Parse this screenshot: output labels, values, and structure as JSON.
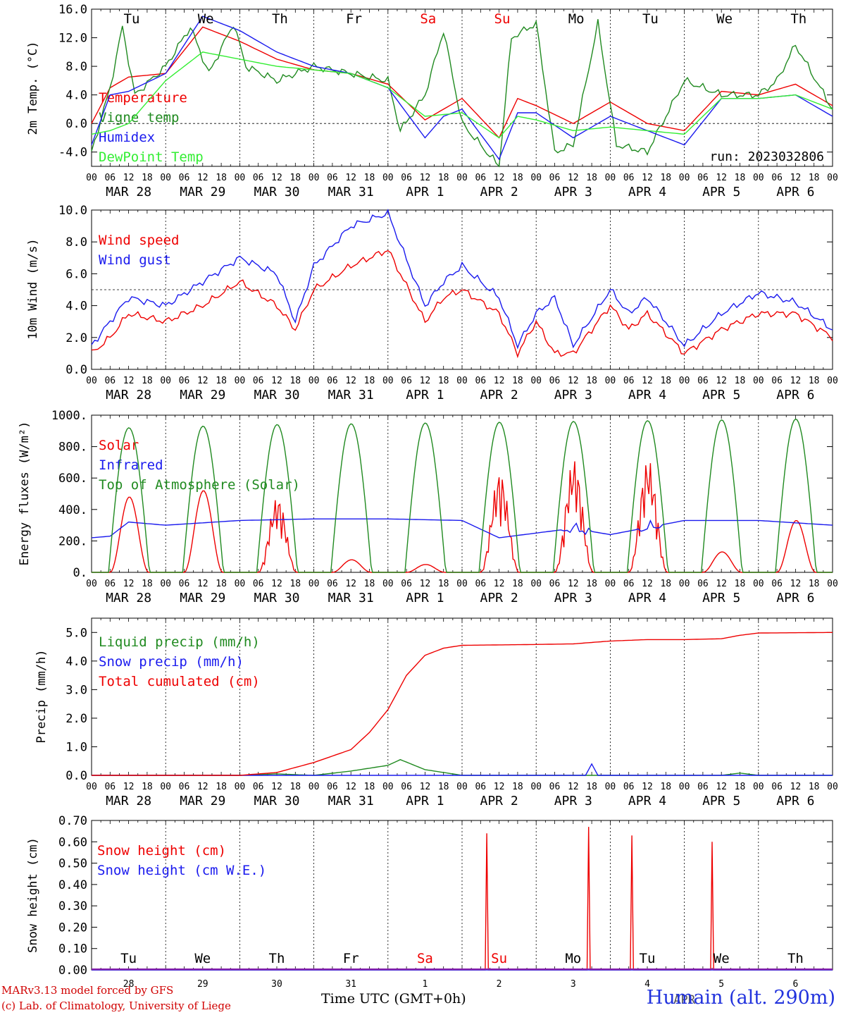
{
  "run_label": "run: 2023032806",
  "footer": {
    "line1": "MARv3.13 model forced by GFS",
    "line2": "(c) Lab. of Climatology, University of Liege",
    "xtitle": "Time UTC (GMT+0h)",
    "station": "Humain (alt. 290m)",
    "month_overlay": "APR"
  },
  "colors": {
    "red": "#ee0000",
    "darkgreen": "#208a20",
    "blue": "#1a1aee",
    "lightgreen": "#33ee33",
    "weekend": "#ee0000"
  },
  "days": [
    {
      "weekday": "Tu",
      "date": "MAR 28",
      "daynum": "28",
      "weekend": false
    },
    {
      "weekday": "We",
      "date": "MAR 29",
      "daynum": "29",
      "weekend": false
    },
    {
      "weekday": "Th",
      "date": "MAR 30",
      "daynum": "30",
      "weekend": false
    },
    {
      "weekday": "Fr",
      "date": "MAR 31",
      "daynum": "31",
      "weekend": false
    },
    {
      "weekday": "Sa",
      "date": "APR  1",
      "daynum": "1",
      "weekend": true
    },
    {
      "weekday": "Su",
      "date": "APR  2",
      "daynum": "2",
      "weekend": true
    },
    {
      "weekday": "Mo",
      "date": "APR  3",
      "daynum": "3",
      "weekend": false
    },
    {
      "weekday": "Tu",
      "date": "APR  4",
      "daynum": "4",
      "weekend": false
    },
    {
      "weekday": "We",
      "date": "APR  5",
      "daynum": "5",
      "weekend": false
    },
    {
      "weekday": "Th",
      "date": "APR  6",
      "daynum": "6",
      "weekend": false
    }
  ],
  "hour_ticks": [
    "00",
    "06",
    "12",
    "18"
  ],
  "chart_data": [
    {
      "type": "line",
      "ylabel": "2m Temp. (°C)",
      "ylim": [
        -6,
        16
      ],
      "yticks": [
        "-4.0",
        "0.0",
        "4.0",
        "8.0",
        "12.0",
        "16.0"
      ],
      "ytick_values": [
        -4,
        0,
        4,
        8,
        12,
        16
      ],
      "reference_line": 0,
      "x_unit": "hours since MAR 28 00 UTC",
      "series": [
        {
          "name": "Temperature",
          "color": "red",
          "x": [
            0,
            6,
            12,
            24,
            36,
            48,
            60,
            72,
            84,
            96,
            108,
            120,
            132,
            138,
            144,
            156,
            168,
            180,
            192,
            204,
            216,
            228,
            240
          ],
          "y": [
            0,
            5,
            6.5,
            7,
            13.5,
            11.5,
            9,
            7.5,
            7,
            5.5,
            0.5,
            3.5,
            -2,
            3.5,
            2.5,
            0,
            3,
            0,
            -1,
            4.5,
            4,
            5.5,
            2.5
          ]
        },
        {
          "name": "Vigne temp",
          "color": "darkgreen",
          "x": [
            0,
            6,
            10,
            14,
            24,
            32,
            38,
            46,
            50,
            60,
            72,
            84,
            96,
            100,
            108,
            114,
            120,
            132,
            136,
            144,
            150,
            156,
            164,
            170,
            180,
            192,
            204,
            216,
            222,
            228,
            240
          ],
          "y": [
            -4,
            5,
            13.5,
            4,
            8,
            13.5,
            7,
            14,
            8,
            6,
            8,
            7,
            6,
            -1,
            4,
            13,
            0,
            -6,
            12,
            14,
            -4,
            -3,
            14,
            -3,
            -4,
            6,
            4,
            4,
            6,
            11,
            2
          ]
        },
        {
          "name": "Humidex",
          "color": "blue",
          "x": [
            0,
            6,
            12,
            24,
            36,
            48,
            60,
            72,
            84,
            96,
            108,
            114,
            120,
            132,
            138,
            144,
            156,
            168,
            180,
            192,
            204,
            216,
            228,
            240
          ],
          "y": [
            -3,
            4,
            4.5,
            7,
            15,
            13,
            10,
            8,
            7,
            5,
            -2,
            1,
            2,
            -5,
            1.5,
            1.5,
            -2,
            1,
            -1,
            -3,
            3.5,
            3.5,
            4,
            1
          ]
        },
        {
          "name": "DewPoint Temp",
          "color": "lightgreen",
          "x": [
            0,
            6,
            12,
            24,
            36,
            48,
            60,
            72,
            84,
            96,
            108,
            120,
            132,
            138,
            144,
            156,
            168,
            180,
            192,
            204,
            216,
            228,
            240
          ],
          "y": [
            -1.5,
            -1,
            0,
            6,
            10,
            9,
            8,
            7.5,
            7,
            5,
            1,
            1.5,
            -2,
            1,
            0.5,
            -1,
            -0.5,
            -1,
            -1.5,
            3.5,
            3.5,
            4,
            2
          ]
        }
      ]
    },
    {
      "type": "line",
      "ylabel": "10m Wind (m/s)",
      "ylim": [
        0,
        10
      ],
      "yticks": [
        "0.0",
        "2.0",
        "4.0",
        "6.0",
        "8.0",
        "10.0"
      ],
      "ytick_values": [
        0,
        2,
        4,
        6,
        8,
        10
      ],
      "reference_line": 5,
      "x_unit": "hours since MAR 28 00 UTC",
      "series": [
        {
          "name": "Wind speed",
          "color": "red",
          "x": [
            0,
            6,
            12,
            24,
            36,
            48,
            60,
            66,
            72,
            84,
            96,
            108,
            114,
            120,
            132,
            138,
            144,
            150,
            156,
            168,
            174,
            180,
            192,
            204,
            216,
            228,
            240
          ],
          "y": [
            1,
            2,
            3.5,
            3,
            4,
            5.5,
            4,
            2.5,
            5,
            6.5,
            7.5,
            3,
            4.5,
            5,
            3.5,
            1,
            3,
            1,
            1,
            4,
            2.5,
            3.5,
            1,
            2.5,
            3.5,
            3.5,
            2
          ]
        },
        {
          "name": "Wind gust",
          "color": "blue",
          "x": [
            0,
            6,
            12,
            24,
            36,
            48,
            60,
            66,
            72,
            84,
            96,
            108,
            114,
            120,
            132,
            138,
            144,
            150,
            156,
            168,
            174,
            180,
            192,
            204,
            216,
            228,
            240
          ],
          "y": [
            1.5,
            3,
            4.5,
            4,
            5.5,
            7,
            6,
            3,
            6.5,
            9,
            9.8,
            4,
            5.5,
            6.5,
            4.5,
            1.5,
            3.5,
            4.5,
            1.5,
            5,
            3.5,
            4.5,
            1.5,
            3.5,
            4.8,
            4.2,
            2.5
          ]
        }
      ]
    },
    {
      "type": "line",
      "ylabel": "Energy fluxes (W/m²)",
      "ylim": [
        0,
        1000
      ],
      "yticks": [
        "0.",
        "200.",
        "400.",
        "600.",
        "800.",
        "1000."
      ],
      "ytick_values": [
        0,
        200,
        400,
        600,
        800,
        1000
      ],
      "x_unit": "hours since MAR 28 00 UTC",
      "series": [
        {
          "name": "Solar",
          "color": "red",
          "solar_daily_peak": [
            480,
            520,
            480,
            80,
            50,
            640,
            720,
            720,
            130,
            330
          ]
        },
        {
          "name": "Infrared",
          "color": "blue",
          "x": [
            0,
            6,
            12,
            24,
            48,
            72,
            96,
            120,
            132,
            144,
            156,
            168,
            192,
            216,
            240
          ],
          "y": [
            220,
            230,
            320,
            300,
            330,
            340,
            340,
            330,
            220,
            250,
            280,
            240,
            330,
            330,
            300
          ]
        },
        {
          "name": "Top of Atmosphere (Solar)",
          "color": "darkgreen",
          "toa_daily_peak": [
            920,
            930,
            940,
            945,
            950,
            955,
            960,
            965,
            970,
            975
          ]
        }
      ]
    },
    {
      "type": "line",
      "ylabel": "Precip (mm/h)",
      "ylim": [
        0,
        5.5
      ],
      "yticks": [
        "0.0",
        "1.0",
        "2.0",
        "3.0",
        "4.0",
        "5.0"
      ],
      "ytick_values": [
        0,
        1,
        2,
        3,
        4,
        5
      ],
      "x_unit": "hours since MAR 28 00 UTC",
      "series": [
        {
          "name": "Liquid precip (mm/h)",
          "color": "darkgreen",
          "x": [
            0,
            48,
            60,
            72,
            84,
            96,
            100,
            108,
            114,
            120,
            144,
            204,
            210,
            216,
            240
          ],
          "y": [
            0,
            0,
            0.05,
            0,
            0.15,
            0.35,
            0.55,
            0.2,
            0.1,
            0,
            0,
            0,
            0.08,
            0,
            0
          ]
        },
        {
          "name": "Snow precip (mm/h)",
          "color": "blue",
          "x": [
            0,
            160,
            162,
            164,
            240
          ],
          "y": [
            0,
            0,
            0.4,
            0,
            0
          ]
        },
        {
          "name": "Total cumulated (cm)",
          "color": "red",
          "x": [
            0,
            48,
            60,
            72,
            84,
            90,
            96,
            102,
            108,
            114,
            120,
            144,
            156,
            168,
            180,
            192,
            204,
            210,
            216,
            240
          ],
          "y": [
            0,
            0,
            0.1,
            0.45,
            0.9,
            1.5,
            2.3,
            3.5,
            4.2,
            4.45,
            4.55,
            4.58,
            4.6,
            4.7,
            4.75,
            4.75,
            4.78,
            4.9,
            4.98,
            5.0
          ]
        }
      ]
    },
    {
      "type": "line",
      "ylabel": "Snow height (cm)",
      "ylim": [
        0,
        0.7
      ],
      "yticks": [
        "0.00",
        "0.10",
        "0.20",
        "0.30",
        "0.40",
        "0.50",
        "0.60",
        "0.70"
      ],
      "ytick_values": [
        0,
        0.1,
        0.2,
        0.3,
        0.4,
        0.5,
        0.6,
        0.7
      ],
      "x_unit": "hours since MAR 28 00 UTC",
      "series": [
        {
          "name": "Snow height (cm)",
          "color": "red",
          "spikes": [
            {
              "x": 128,
              "y": 0.64
            },
            {
              "x": 161,
              "y": 0.67
            },
            {
              "x": 175,
              "y": 0.63
            },
            {
              "x": 201,
              "y": 0.6
            }
          ]
        },
        {
          "name": "Snow height (cm W.E.)",
          "color": "blue",
          "spikes": []
        }
      ]
    }
  ]
}
